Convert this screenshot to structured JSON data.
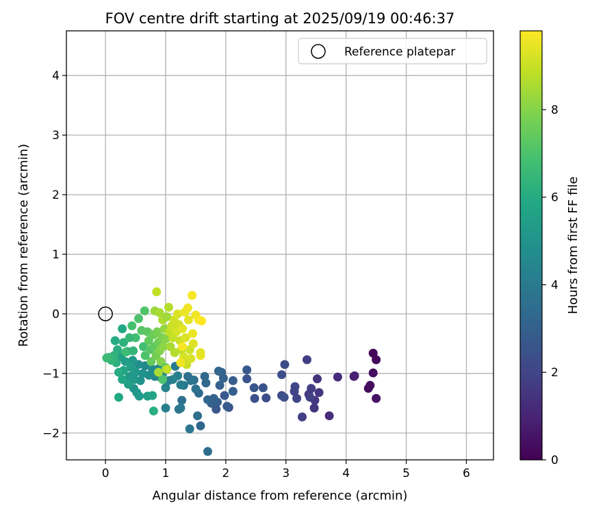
{
  "chart_data": {
    "type": "scatter",
    "title": "FOV centre drift starting at 2025/09/19 00:46:37",
    "xlabel": "Angular distance from reference (arcmin)",
    "ylabel": "Rotation from reference (arcmin)",
    "xlim": [
      -0.65,
      6.45
    ],
    "ylim": [
      -2.45,
      4.75
    ],
    "xticks": [
      0,
      1,
      2,
      3,
      4,
      5,
      6
    ],
    "yticks": [
      -2,
      -1,
      0,
      1,
      2,
      3,
      4
    ],
    "grid": true,
    "legend": {
      "position": "top-right",
      "label": "Reference platepar"
    },
    "reference_point": {
      "x": 0,
      "y": 0
    },
    "colorbar": {
      "label": "Hours from first FF file",
      "colormap": "viridis",
      "range": [
        0,
        9.8
      ],
      "ticks": [
        0,
        2,
        4,
        6,
        8
      ]
    },
    "points": [
      {
        "x": 4.45,
        "y": -0.66,
        "c": 0.1
      },
      {
        "x": 4.5,
        "y": -0.77,
        "c": 0.2
      },
      {
        "x": 4.45,
        "y": -0.99,
        "c": 0.3
      },
      {
        "x": 4.4,
        "y": -1.2,
        "c": 0.4
      },
      {
        "x": 4.37,
        "y": -1.25,
        "c": 0.3
      },
      {
        "x": 4.5,
        "y": -1.42,
        "c": 0.5
      },
      {
        "x": 4.13,
        "y": -1.05,
        "c": 0.7
      },
      {
        "x": 4.14,
        "y": -1.04,
        "c": 0.9
      },
      {
        "x": 3.86,
        "y": -1.06,
        "c": 1.2
      },
      {
        "x": 3.72,
        "y": -1.71,
        "c": 1.3
      },
      {
        "x": 3.55,
        "y": -1.32,
        "c": 1.5
      },
      {
        "x": 3.52,
        "y": -1.09,
        "c": 1.4
      },
      {
        "x": 3.48,
        "y": -1.45,
        "c": 1.6
      },
      {
        "x": 3.47,
        "y": -1.58,
        "c": 1.5
      },
      {
        "x": 3.42,
        "y": -1.25,
        "c": 1.7
      },
      {
        "x": 3.38,
        "y": -1.35,
        "c": 1.6
      },
      {
        "x": 3.35,
        "y": -0.77,
        "c": 1.8
      },
      {
        "x": 3.4,
        "y": -1.4,
        "c": 1.9
      },
      {
        "x": 3.27,
        "y": -1.73,
        "c": 1.8
      },
      {
        "x": 3.18,
        "y": -1.42,
        "c": 2.0
      },
      {
        "x": 3.15,
        "y": -1.22,
        "c": 2.1
      },
      {
        "x": 3.14,
        "y": -1.3,
        "c": 2.0
      },
      {
        "x": 2.98,
        "y": -0.85,
        "c": 2.2
      },
      {
        "x": 2.93,
        "y": -1.02,
        "c": 2.3
      },
      {
        "x": 2.93,
        "y": -1.37,
        "c": 2.2
      },
      {
        "x": 2.97,
        "y": -1.4,
        "c": 2.4
      },
      {
        "x": 2.67,
        "y": -1.41,
        "c": 2.3
      },
      {
        "x": 2.62,
        "y": -1.24,
        "c": 2.5
      },
      {
        "x": 2.48,
        "y": -1.42,
        "c": 2.4
      },
      {
        "x": 2.47,
        "y": -1.24,
        "c": 2.6
      },
      {
        "x": 2.35,
        "y": -1.09,
        "c": 2.5
      },
      {
        "x": 2.35,
        "y": -0.94,
        "c": 2.7
      },
      {
        "x": 2.12,
        "y": -1.12,
        "c": 2.8
      },
      {
        "x": 2.12,
        "y": -1.3,
        "c": 2.9
      },
      {
        "x": 2.05,
        "y": -1.57,
        "c": 2.6
      },
      {
        "x": 2.02,
        "y": -1.55,
        "c": 2.8
      },
      {
        "x": 1.98,
        "y": -1.37,
        "c": 2.7
      },
      {
        "x": 1.96,
        "y": -1.08,
        "c": 3.0
      },
      {
        "x": 1.93,
        "y": -0.98,
        "c": 3.1
      },
      {
        "x": 1.88,
        "y": -0.96,
        "c": 3.2
      },
      {
        "x": 1.9,
        "y": -1.2,
        "c": 3.0
      },
      {
        "x": 1.86,
        "y": -1.48,
        "c": 2.9
      },
      {
        "x": 1.84,
        "y": -1.6,
        "c": 2.7
      },
      {
        "x": 1.8,
        "y": -1.42,
        "c": 3.1
      },
      {
        "x": 1.76,
        "y": -1.5,
        "c": 3.0
      },
      {
        "x": 1.7,
        "y": -1.44,
        "c": 3.2
      },
      {
        "x": 1.67,
        "y": -1.16,
        "c": 3.3
      },
      {
        "x": 1.65,
        "y": -1.05,
        "c": 3.4
      },
      {
        "x": 1.7,
        "y": -2.31,
        "c": 3.5
      },
      {
        "x": 1.58,
        "y": -1.88,
        "c": 3.3
      },
      {
        "x": 1.53,
        "y": -1.71,
        "c": 3.6
      },
      {
        "x": 1.55,
        "y": -1.33,
        "c": 3.4
      },
      {
        "x": 1.5,
        "y": -1.26,
        "c": 3.7
      },
      {
        "x": 1.47,
        "y": -1.11,
        "c": 3.5
      },
      {
        "x": 1.42,
        "y": -1.12,
        "c": 3.8
      },
      {
        "x": 1.37,
        "y": -1.05,
        "c": 3.6
      },
      {
        "x": 1.4,
        "y": -1.93,
        "c": 3.9
      },
      {
        "x": 1.3,
        "y": -1.2,
        "c": 3.8
      },
      {
        "x": 1.27,
        "y": -1.45,
        "c": 3.7
      },
      {
        "x": 1.25,
        "y": -1.58,
        "c": 4.0
      },
      {
        "x": 1.22,
        "y": -1.6,
        "c": 3.9
      },
      {
        "x": 1.25,
        "y": -1.19,
        "c": 4.1
      },
      {
        "x": 1.2,
        "y": -1.04,
        "c": 4.2
      },
      {
        "x": 1.16,
        "y": -0.88,
        "c": 4.0
      },
      {
        "x": 1.12,
        "y": -1.1,
        "c": 4.3
      },
      {
        "x": 1.05,
        "y": -1.12,
        "c": 4.1
      },
      {
        "x": 1.0,
        "y": -1.24,
        "c": 4.4
      },
      {
        "x": 1.0,
        "y": -1.58,
        "c": 4.2
      },
      {
        "x": 0.95,
        "y": -1.0,
        "c": 4.5
      },
      {
        "x": 0.92,
        "y": -1.07,
        "c": 4.3
      },
      {
        "x": 0.88,
        "y": -0.92,
        "c": 4.6
      },
      {
        "x": 0.82,
        "y": -1.05,
        "c": 4.4
      },
      {
        "x": 0.78,
        "y": -0.93,
        "c": 4.7
      },
      {
        "x": 0.72,
        "y": -1.03,
        "c": 4.8
      },
      {
        "x": 0.66,
        "y": -0.87,
        "c": 4.6
      },
      {
        "x": 0.62,
        "y": -1.0,
        "c": 4.9
      },
      {
        "x": 0.58,
        "y": -1.12,
        "c": 5.0
      },
      {
        "x": 0.55,
        "y": -0.85,
        "c": 4.8
      },
      {
        "x": 0.5,
        "y": -0.98,
        "c": 5.1
      },
      {
        "x": 0.48,
        "y": -1.1,
        "c": 5.2
      },
      {
        "x": 0.47,
        "y": -1.25,
        "c": 5.0
      },
      {
        "x": 0.45,
        "y": -0.78,
        "c": 5.3
      },
      {
        "x": 0.42,
        "y": -0.9,
        "c": 5.4
      },
      {
        "x": 0.4,
        "y": -1.05,
        "c": 5.2
      },
      {
        "x": 0.38,
        "y": -1.18,
        "c": 5.5
      },
      {
        "x": 0.36,
        "y": -0.63,
        "c": 5.6
      },
      {
        "x": 0.33,
        "y": -0.8,
        "c": 5.4
      },
      {
        "x": 0.3,
        "y": -0.95,
        "c": 5.7
      },
      {
        "x": 0.28,
        "y": -1.1,
        "c": 5.8
      },
      {
        "x": 0.28,
        "y": -0.25,
        "c": 5.9
      },
      {
        "x": 0.25,
        "y": -0.72,
        "c": 5.6
      },
      {
        "x": 0.22,
        "y": -0.98,
        "c": 6.0
      },
      {
        "x": 0.22,
        "y": -1.4,
        "c": 5.9
      },
      {
        "x": 0.2,
        "y": -0.6,
        "c": 6.1
      },
      {
        "x": 0.18,
        "y": -0.82,
        "c": 6.2
      },
      {
        "x": 0.16,
        "y": -0.45,
        "c": 6.0
      },
      {
        "x": 0.14,
        "y": -0.7,
        "c": 6.3
      },
      {
        "x": 0.1,
        "y": -0.78,
        "c": 6.4
      },
      {
        "x": 0.05,
        "y": -0.73,
        "c": 6.5
      },
      {
        "x": 0.02,
        "y": -0.74,
        "c": 6.6
      },
      {
        "x": 0.3,
        "y": -0.48,
        "c": 6.2
      },
      {
        "x": 0.34,
        "y": -0.64,
        "c": 6.7
      },
      {
        "x": 0.46,
        "y": -0.62,
        "c": 6.4
      },
      {
        "x": 0.5,
        "y": -0.4,
        "c": 6.8
      },
      {
        "x": 0.52,
        "y": -1.32,
        "c": 5.1
      },
      {
        "x": 0.56,
        "y": -1.38,
        "c": 5.3
      },
      {
        "x": 0.7,
        "y": -1.38,
        "c": 5.5
      },
      {
        "x": 0.78,
        "y": -1.37,
        "c": 5.7
      },
      {
        "x": 0.8,
        "y": -1.63,
        "c": 6.1
      },
      {
        "x": 0.4,
        "y": -0.4,
        "c": 6.5
      },
      {
        "x": 0.44,
        "y": -0.2,
        "c": 6.9
      },
      {
        "x": 0.55,
        "y": -0.08,
        "c": 7.0
      },
      {
        "x": 0.65,
        "y": 0.05,
        "c": 7.1
      },
      {
        "x": 0.6,
        "y": -0.28,
        "c": 7.2
      },
      {
        "x": 0.63,
        "y": -0.55,
        "c": 6.8
      },
      {
        "x": 0.66,
        "y": -0.7,
        "c": 7.0
      },
      {
        "x": 0.7,
        "y": -0.3,
        "c": 7.3
      },
      {
        "x": 0.72,
        "y": -0.45,
        "c": 7.4
      },
      {
        "x": 0.74,
        "y": -0.6,
        "c": 7.2
      },
      {
        "x": 0.76,
        "y": -0.8,
        "c": 7.5
      },
      {
        "x": 0.8,
        "y": -0.35,
        "c": 7.6
      },
      {
        "x": 0.82,
        "y": -0.55,
        "c": 7.4
      },
      {
        "x": 0.84,
        "y": -0.7,
        "c": 7.7
      },
      {
        "x": 0.86,
        "y": -0.3,
        "c": 7.8
      },
      {
        "x": 0.88,
        "y": -0.48,
        "c": 7.6
      },
      {
        "x": 0.9,
        "y": -0.62,
        "c": 7.9
      },
      {
        "x": 0.92,
        "y": -0.8,
        "c": 8.0
      },
      {
        "x": 0.94,
        "y": -0.4,
        "c": 7.8
      },
      {
        "x": 0.96,
        "y": -0.55,
        "c": 8.1
      },
      {
        "x": 0.98,
        "y": -0.25,
        "c": 8.2
      },
      {
        "x": 1.0,
        "y": -0.42,
        "c": 8.0
      },
      {
        "x": 1.0,
        "y": -0.9,
        "c": 7.3
      },
      {
        "x": 0.95,
        "y": -1.1,
        "c": 7.0
      },
      {
        "x": 0.82,
        "y": 0.05,
        "c": 8.3
      },
      {
        "x": 0.85,
        "y": 0.37,
        "c": 8.9
      },
      {
        "x": 0.9,
        "y": 0.02,
        "c": 8.5
      },
      {
        "x": 0.95,
        "y": -0.1,
        "c": 8.6
      },
      {
        "x": 1.02,
        "y": -0.05,
        "c": 8.4
      },
      {
        "x": 1.05,
        "y": 0.11,
        "c": 8.7
      },
      {
        "x": 1.06,
        "y": -0.3,
        "c": 8.8
      },
      {
        "x": 1.08,
        "y": -0.55,
        "c": 8.5
      },
      {
        "x": 1.1,
        "y": -0.2,
        "c": 9.0
      },
      {
        "x": 1.12,
        "y": -0.4,
        "c": 8.9
      },
      {
        "x": 1.14,
        "y": -0.1,
        "c": 9.1
      },
      {
        "x": 1.15,
        "y": -0.65,
        "c": 8.7
      },
      {
        "x": 1.18,
        "y": -0.3,
        "c": 9.2
      },
      {
        "x": 1.2,
        "y": 0.0,
        "c": 9.3
      },
      {
        "x": 1.22,
        "y": -0.18,
        "c": 9.1
      },
      {
        "x": 1.24,
        "y": -0.45,
        "c": 9.0
      },
      {
        "x": 1.26,
        "y": -0.6,
        "c": 8.8
      },
      {
        "x": 1.28,
        "y": -0.25,
        "c": 9.4
      },
      {
        "x": 1.3,
        "y": -0.72,
        "c": 9.2
      },
      {
        "x": 1.32,
        "y": 0.03,
        "c": 9.5
      },
      {
        "x": 1.33,
        "y": -0.4,
        "c": 9.3
      },
      {
        "x": 1.35,
        "y": -0.85,
        "c": 9.0
      },
      {
        "x": 1.37,
        "y": 0.1,
        "c": 9.6
      },
      {
        "x": 1.38,
        "y": -0.1,
        "c": 9.4
      },
      {
        "x": 1.4,
        "y": -0.6,
        "c": 9.1
      },
      {
        "x": 1.42,
        "y": -0.75,
        "c": 9.2
      },
      {
        "x": 1.44,
        "y": 0.31,
        "c": 9.7
      },
      {
        "x": 1.45,
        "y": -0.33,
        "c": 9.5
      },
      {
        "x": 1.46,
        "y": -0.5,
        "c": 9.3
      },
      {
        "x": 1.5,
        "y": -0.02,
        "c": 9.6
      },
      {
        "x": 1.55,
        "y": -0.1,
        "c": 9.7
      },
      {
        "x": 1.58,
        "y": -0.7,
        "c": 9.5
      },
      {
        "x": 1.6,
        "y": -0.12,
        "c": 9.8
      },
      {
        "x": 1.58,
        "y": -0.65,
        "c": 9.4
      },
      {
        "x": 1.25,
        "y": -0.82,
        "c": 9.6
      },
      {
        "x": 1.28,
        "y": -0.55,
        "c": 9.7
      },
      {
        "x": 0.88,
        "y": -0.98,
        "c": 8.5
      },
      {
        "x": 1.02,
        "y": -0.93,
        "c": 8.9
      }
    ]
  }
}
